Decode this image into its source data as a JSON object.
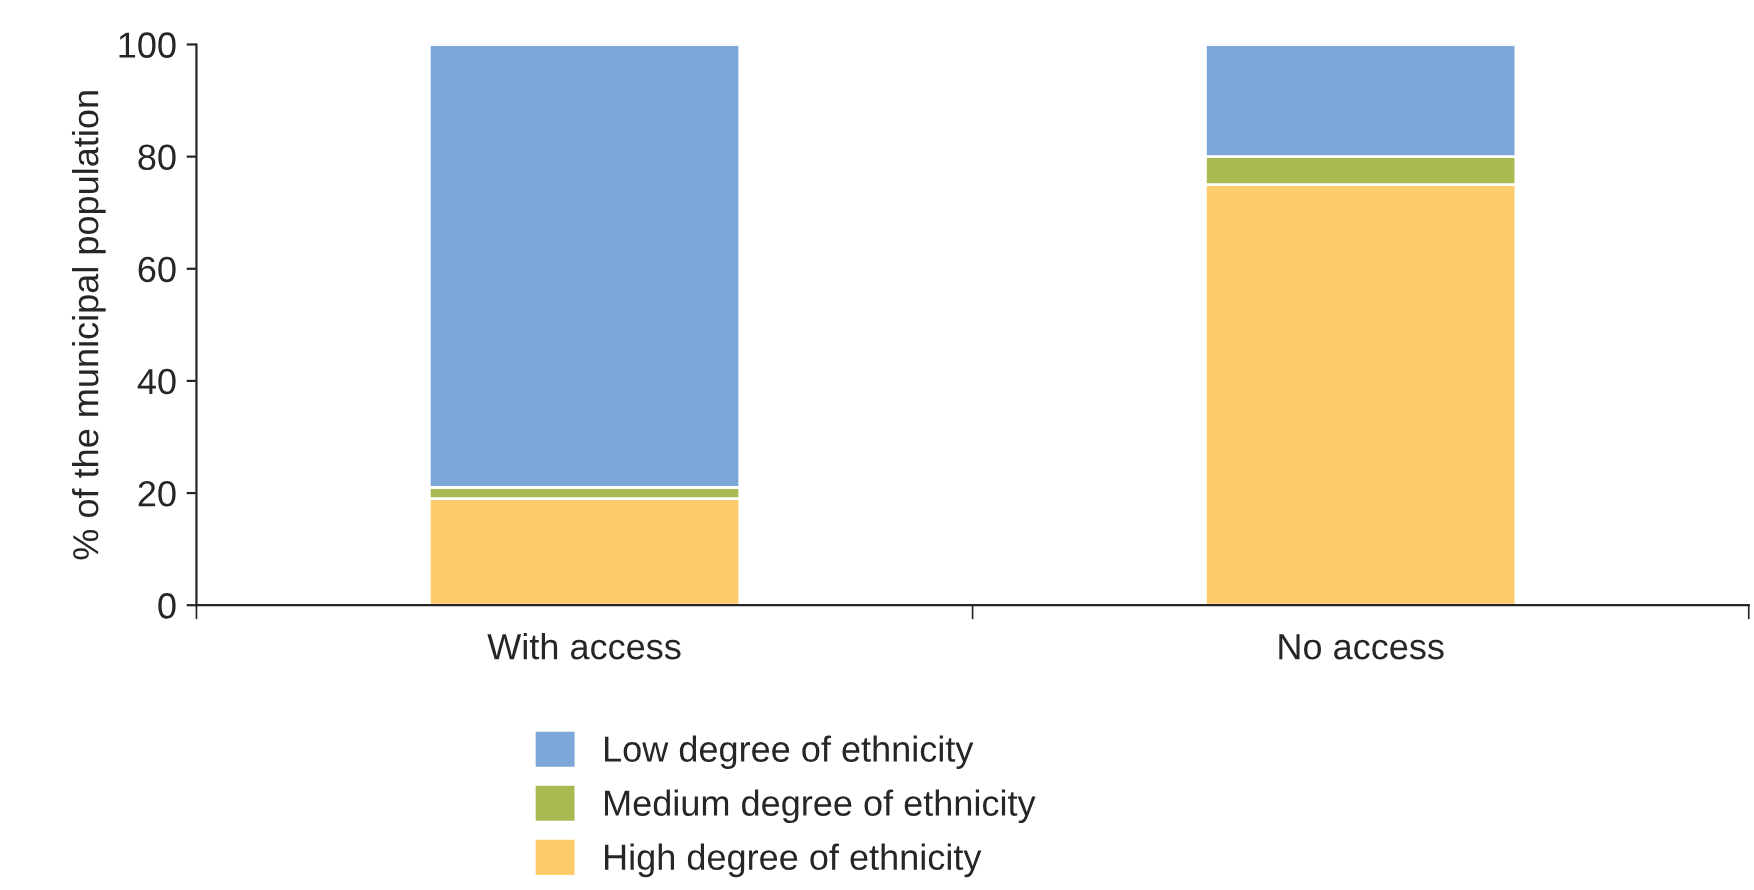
{
  "chart_data": {
    "type": "bar",
    "stacked": true,
    "ylabel": "% of the municipal population",
    "categories": [
      "With access",
      "No access"
    ],
    "series": [
      {
        "name": "High degree of ethnicity",
        "color": "#fdcb69",
        "values": [
          19,
          75
        ]
      },
      {
        "name": "Medium degree of ethnicity",
        "color": "#a9ba53",
        "values": [
          2,
          5
        ]
      },
      {
        "name": "Low degree of ethnicity",
        "color": "#7da7d9",
        "values": [
          79,
          20
        ]
      }
    ],
    "ylim": [
      0,
      100
    ],
    "yticks": [
      0,
      20,
      40,
      60,
      80,
      100
    ],
    "legend": "bottom",
    "grid": false
  }
}
